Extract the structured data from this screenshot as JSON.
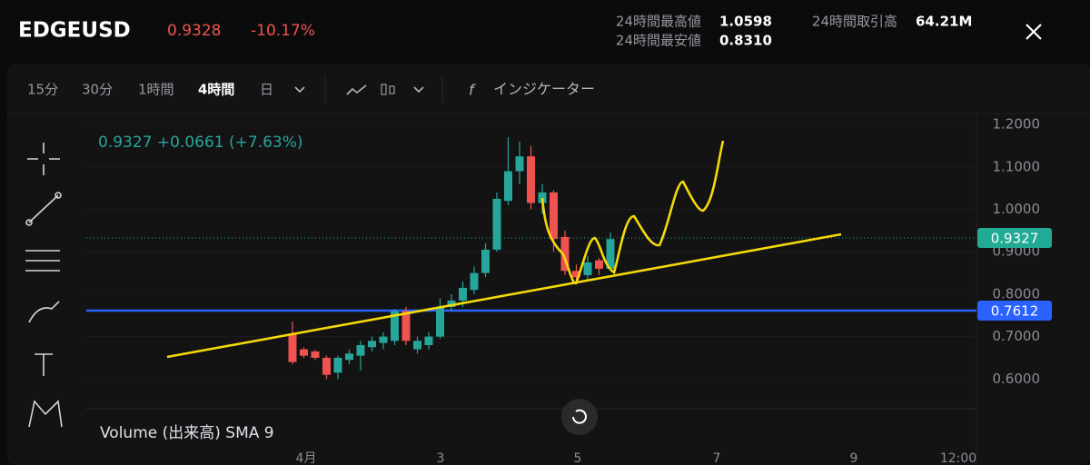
{
  "header": {
    "symbol": "EDGEUSD",
    "price": "0.9328",
    "change": "-10.17%",
    "stats": [
      {
        "label": "24時間最高値",
        "value": "1.0598"
      },
      {
        "label": "24時間取引高",
        "value": "64.21M"
      },
      {
        "label": "24時間最安値",
        "value": "0.8310"
      }
    ]
  },
  "toolbar": {
    "timeframes": [
      "15分",
      "30分",
      "1時間",
      "4時間",
      "日"
    ],
    "active": "4時間",
    "indicator": "インジケーター"
  },
  "chart_data": {
    "type": "candlestick",
    "legend": "0.9327 +0.0661 (+7.63%)",
    "volume_label": "Volume (出来高) SMA 9",
    "up_color": "#26a69a",
    "down_color": "#ef5350",
    "open": [
      0.705,
      0.67,
      0.665,
      0.65,
      0.615,
      0.645,
      0.655,
      0.675,
      0.685,
      0.69,
      0.76,
      0.67,
      0.68,
      0.7,
      0.77,
      0.785,
      0.81,
      0.85,
      0.905,
      1.02,
      1.09,
      1.125,
      1.015,
      1.04,
      0.935,
      0.855,
      0.845,
      0.88,
      0.86
    ],
    "high": [
      0.735,
      0.675,
      0.668,
      0.655,
      0.655,
      0.67,
      0.69,
      0.7,
      0.71,
      0.765,
      0.77,
      0.7,
      0.71,
      0.79,
      0.8,
      0.83,
      0.865,
      0.92,
      1.04,
      1.17,
      1.16,
      1.15,
      1.06,
      1.045,
      0.95,
      0.87,
      0.89,
      0.885,
      0.945
    ],
    "low": [
      0.635,
      0.65,
      0.645,
      0.6,
      0.6,
      0.635,
      0.62,
      0.665,
      0.67,
      0.68,
      0.68,
      0.66,
      0.67,
      0.695,
      0.76,
      0.77,
      0.8,
      0.84,
      0.9,
      1.01,
      1.06,
      1.0,
      0.99,
      0.9,
      0.845,
      0.83,
      0.835,
      0.845,
      0.855
    ],
    "close": [
      0.64,
      0.655,
      0.65,
      0.61,
      0.65,
      0.66,
      0.68,
      0.69,
      0.7,
      0.76,
      0.69,
      0.69,
      0.7,
      0.77,
      0.785,
      0.815,
      0.85,
      0.905,
      1.025,
      1.09,
      1.125,
      1.015,
      1.04,
      0.93,
      0.855,
      0.84,
      0.875,
      0.86,
      0.93
    ],
    "ylim": [
      0.53,
      1.226
    ],
    "yticks": [
      {
        "value": 1.2,
        "label": "1.2000"
      },
      {
        "value": 1.1,
        "label": "1.1000"
      },
      {
        "value": 1.0,
        "label": "1.0000"
      },
      {
        "value": 0.9,
        "label": "0.9000"
      },
      {
        "value": 0.8,
        "label": "0.8000"
      },
      {
        "value": 0.7,
        "label": "0.7000"
      },
      {
        "value": 0.6,
        "label": "0.6000"
      }
    ],
    "x_labels": [
      "4月",
      "3",
      "5",
      "7",
      "9",
      "12:00"
    ],
    "price_lines": [
      {
        "value": 0.9327,
        "color": "#22ab94",
        "style": "dotted"
      },
      {
        "value": 0.7612,
        "color": "#2962ff",
        "style": "solid"
      }
    ]
  }
}
